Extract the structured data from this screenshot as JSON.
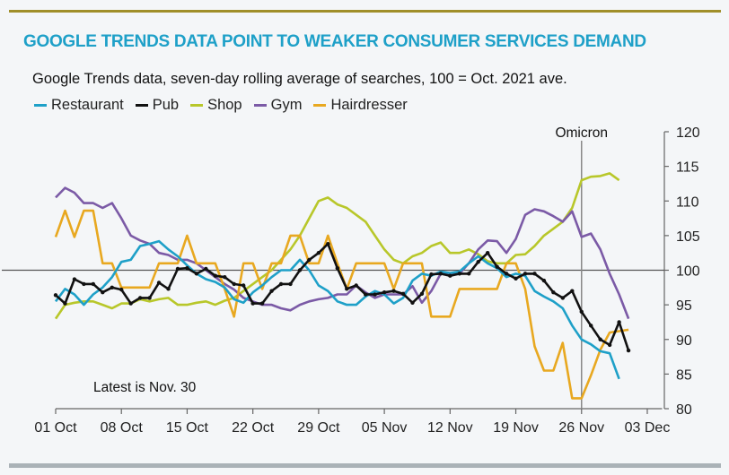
{
  "chart_data": {
    "type": "line",
    "title": "GOOGLE TRENDS DATA POINT TO WEAKER CONSUMER SERVICES DEMAND",
    "subtitle": "Google Trends data, seven-day rolling average of searches, 100 = Oct. 2021 ave.",
    "xlabel": "",
    "ylabel": "",
    "x_start": "2021-10-01",
    "x_end": "2021-11-30",
    "x_tick_labels": [
      "01 Oct",
      "08 Oct",
      "15 Oct",
      "22 Oct",
      "29 Oct",
      "05 Nov",
      "12 Nov",
      "19 Nov",
      "26 Nov",
      "03 Dec"
    ],
    "x_tick_days": [
      0,
      7,
      14,
      21,
      28,
      35,
      42,
      49,
      56,
      63
    ],
    "x_range_days": [
      0,
      64
    ],
    "ylim": [
      80,
      120
    ],
    "y_ticks": [
      80,
      85,
      90,
      95,
      100,
      105,
      110,
      115,
      120
    ],
    "y_axis_side": "right",
    "reference_line": 100,
    "legend_position": "top-left",
    "annotations": [
      {
        "text": "Omicron",
        "type": "vertical-line",
        "day": 56
      },
      {
        "text": "Latest is Nov. 30",
        "type": "text"
      }
    ],
    "series": [
      {
        "name": "Restaurant",
        "color": "#1ea0c8",
        "marker": false,
        "values": [
          95.5,
          97.3,
          96.5,
          95,
          96.5,
          97.5,
          99,
          101.2,
          101.5,
          103.5,
          103.8,
          104.2,
          103,
          102,
          100.7,
          99.5,
          98.7,
          98.3,
          97.5,
          95.8,
          95.3,
          96.8,
          97.8,
          99,
          100,
          100,
          101.5,
          100,
          97.8,
          97,
          95.5,
          95,
          95,
          96.2,
          97,
          96.5,
          95.2,
          96,
          98.5,
          99.5,
          99.2,
          99.8,
          99.6,
          99.8,
          101,
          102,
          101,
          100.3,
          99,
          99.5,
          99.2,
          97,
          96.2,
          95.5,
          94.5,
          92,
          90,
          89.3,
          88.3,
          88,
          84.3
        ]
      },
      {
        "name": "Pub",
        "color": "#111111",
        "marker": true,
        "values": [
          96.4,
          95.2,
          98.7,
          98,
          98,
          96.8,
          97.5,
          97.2,
          95.2,
          96,
          96,
          98.2,
          97.3,
          100.2,
          100.3,
          99.5,
          100.2,
          99.2,
          99,
          98,
          97.8,
          95.2,
          95.2,
          97,
          98,
          98,
          100,
          101.5,
          102.5,
          103.8,
          100.3,
          97.3,
          97.8,
          96.5,
          96.5,
          96.8,
          97,
          96.6,
          95.3,
          96.6,
          99.4,
          99.5,
          99.2,
          99.5,
          99.5,
          101.2,
          102.5,
          100.5,
          99.5,
          98.8,
          99.5,
          99.5,
          98.5,
          96.8,
          96,
          97,
          94,
          92,
          90,
          89.2,
          92.5,
          88.4
        ]
      },
      {
        "name": "Shop",
        "color": "#b8c72a",
        "marker": false,
        "values": [
          93,
          95,
          95.3,
          95.5,
          95.5,
          95,
          94.5,
          95.2,
          95.2,
          95.8,
          95.5,
          95.8,
          96,
          95,
          95,
          95.3,
          95.5,
          95,
          95.6,
          96,
          97,
          98,
          99,
          100,
          101.5,
          103,
          105,
          107.5,
          110,
          110.5,
          109.5,
          109,
          108,
          107,
          105,
          103,
          101.5,
          101,
          102,
          102.5,
          103.5,
          104,
          102.5,
          102.5,
          103,
          102.3,
          101.3,
          101,
          101,
          102.2,
          102.3,
          103.5,
          105,
          106,
          107,
          109,
          113,
          113.5,
          113.6,
          114,
          113
        ]
      },
      {
        "name": "Gym",
        "color": "#7b5aa6",
        "marker": false,
        "values": [
          110.5,
          111.9,
          111.2,
          109.7,
          109.7,
          109,
          109.7,
          107.5,
          105,
          104.3,
          103.8,
          102.5,
          102.2,
          101.5,
          101.5,
          101,
          100,
          99,
          98,
          97.2,
          96,
          95.5,
          95,
          95,
          94.5,
          94.2,
          95,
          95.5,
          95.8,
          96,
          96.5,
          96.5,
          97.8,
          96.8,
          96,
          96.5,
          96.5,
          96.5,
          97.7,
          95.3,
          97,
          99.5,
          99.5,
          99.5,
          101,
          103,
          104.3,
          104.2,
          102.5,
          104.5,
          108,
          108.8,
          108.5,
          107.8,
          107,
          108.5,
          104.8,
          105.3,
          103,
          99.5,
          96.5,
          93
        ]
      },
      {
        "name": "Hairdresser",
        "color": "#e8a820",
        "marker": false,
        "values": [
          104.8,
          108.6,
          104.8,
          108.6,
          108.6,
          101,
          101,
          97.5,
          97.5,
          97.5,
          97.5,
          101,
          101,
          101,
          105,
          101,
          101,
          101,
          97.3,
          93.3,
          101,
          101,
          97.3,
          101,
          101,
          105,
          105,
          101,
          101,
          105,
          101,
          97.3,
          101,
          101,
          101,
          101,
          97.3,
          101,
          101,
          101,
          93.3,
          93.3,
          93.3,
          97.3,
          97.3,
          97.3,
          97.3,
          97.3,
          101,
          101,
          97.3,
          89,
          85.5,
          85.5,
          89.5,
          81.5,
          81.5,
          84.8,
          88.5,
          91,
          91.2,
          91.4
        ]
      }
    ]
  }
}
